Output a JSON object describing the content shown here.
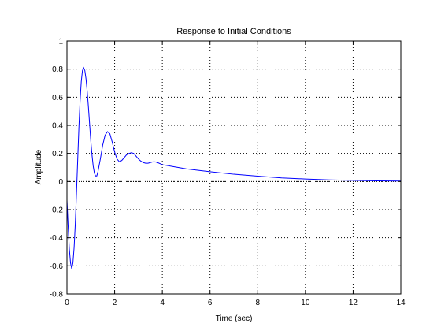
{
  "chart_data": {
    "type": "line",
    "title": "Response to Initial Conditions",
    "xlabel": "Time (sec)",
    "ylabel": "Amplitude",
    "xlim": [
      0,
      14
    ],
    "ylim": [
      -0.8,
      1
    ],
    "x_ticks": [
      0,
      2,
      4,
      6,
      8,
      10,
      12,
      14
    ],
    "y_ticks": [
      -0.8,
      -0.6,
      -0.4,
      -0.2,
      0,
      0.2,
      0.4,
      0.6,
      0.8,
      1
    ],
    "grid": true,
    "zero_line": true,
    "series": [
      {
        "color": "#0000ff",
        "points": [
          [
            0.0,
            -0.13
          ],
          [
            0.05,
            -0.32
          ],
          [
            0.1,
            -0.48
          ],
          [
            0.15,
            -0.58
          ],
          [
            0.2,
            -0.62
          ],
          [
            0.25,
            -0.58
          ],
          [
            0.3,
            -0.47
          ],
          [
            0.35,
            -0.3
          ],
          [
            0.4,
            -0.08
          ],
          [
            0.45,
            0.15
          ],
          [
            0.5,
            0.38
          ],
          [
            0.55,
            0.57
          ],
          [
            0.6,
            0.71
          ],
          [
            0.65,
            0.79
          ],
          [
            0.7,
            0.81
          ],
          [
            0.75,
            0.79
          ],
          [
            0.8,
            0.73
          ],
          [
            0.85,
            0.64
          ],
          [
            0.9,
            0.53
          ],
          [
            0.95,
            0.41
          ],
          [
            1.0,
            0.29
          ],
          [
            1.05,
            0.19
          ],
          [
            1.1,
            0.11
          ],
          [
            1.15,
            0.06
          ],
          [
            1.2,
            0.04
          ],
          [
            1.25,
            0.04
          ],
          [
            1.3,
            0.07
          ],
          [
            1.4,
            0.16
          ],
          [
            1.5,
            0.26
          ],
          [
            1.6,
            0.33
          ],
          [
            1.7,
            0.355
          ],
          [
            1.8,
            0.34
          ],
          [
            1.9,
            0.28
          ],
          [
            2.0,
            0.21
          ],
          [
            2.1,
            0.16
          ],
          [
            2.2,
            0.14
          ],
          [
            2.3,
            0.15
          ],
          [
            2.4,
            0.17
          ],
          [
            2.5,
            0.19
          ],
          [
            2.6,
            0.2
          ],
          [
            2.7,
            0.205
          ],
          [
            2.8,
            0.2
          ],
          [
            2.9,
            0.18
          ],
          [
            3.0,
            0.16
          ],
          [
            3.1,
            0.145
          ],
          [
            3.2,
            0.135
          ],
          [
            3.3,
            0.13
          ],
          [
            3.4,
            0.13
          ],
          [
            3.5,
            0.135
          ],
          [
            3.6,
            0.14
          ],
          [
            3.7,
            0.14
          ],
          [
            3.8,
            0.135
          ],
          [
            4.0,
            0.12
          ],
          [
            4.5,
            0.105
          ],
          [
            5.0,
            0.09
          ],
          [
            6.0,
            0.07
          ],
          [
            7.0,
            0.052
          ],
          [
            8.0,
            0.038
          ],
          [
            9.0,
            0.026
          ],
          [
            10.0,
            0.018
          ],
          [
            11.0,
            0.012
          ],
          [
            12.0,
            0.008
          ],
          [
            13.0,
            0.005
          ],
          [
            14.0,
            0.003
          ]
        ]
      }
    ]
  }
}
